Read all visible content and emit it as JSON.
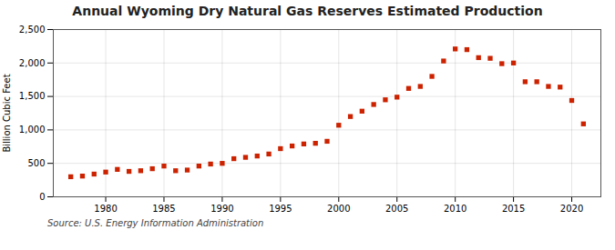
{
  "chart_data": {
    "type": "scatter",
    "title": "Annual Wyoming Dry Natural Gas Reserves Estimated Production",
    "ylabel": "Billion Cubic Feet",
    "annotation": "Source: U.S. Energy Information Administration",
    "x": [
      1977,
      1978,
      1979,
      1980,
      1981,
      1982,
      1983,
      1984,
      1985,
      1986,
      1987,
      1988,
      1989,
      1990,
      1991,
      1992,
      1993,
      1994,
      1995,
      1996,
      1997,
      1998,
      1999,
      2000,
      2001,
      2002,
      2003,
      2004,
      2005,
      2006,
      2007,
      2008,
      2009,
      2010,
      2011,
      2012,
      2013,
      2014,
      2015,
      2016,
      2017,
      2018,
      2019,
      2020,
      2021
    ],
    "values": [
      300,
      310,
      340,
      370,
      410,
      380,
      390,
      420,
      460,
      390,
      400,
      460,
      490,
      500,
      570,
      590,
      610,
      640,
      720,
      760,
      790,
      800,
      830,
      1070,
      1200,
      1280,
      1380,
      1450,
      1490,
      1620,
      1650,
      1800,
      2030,
      2210,
      2200,
      2080,
      2070,
      1990,
      2000,
      1720,
      1720,
      1650,
      1640,
      1440,
      1090
    ],
    "color": "#cc2200",
    "marker": "square",
    "xlim": [
      1975.5,
      2022.5
    ],
    "xticks": [
      1980,
      1985,
      1990,
      1995,
      2000,
      2005,
      2010,
      2015,
      2020
    ],
    "ylim": [
      0,
      2500
    ],
    "yticks": [
      0,
      500,
      {
        "value": 1000,
        "label": "1,000"
      },
      {
        "value": 1500,
        "label": "1,500"
      },
      {
        "value": 2000,
        "label": "2,000"
      },
      {
        "value": 2500,
        "label": "2,500"
      }
    ],
    "grid": true
  }
}
